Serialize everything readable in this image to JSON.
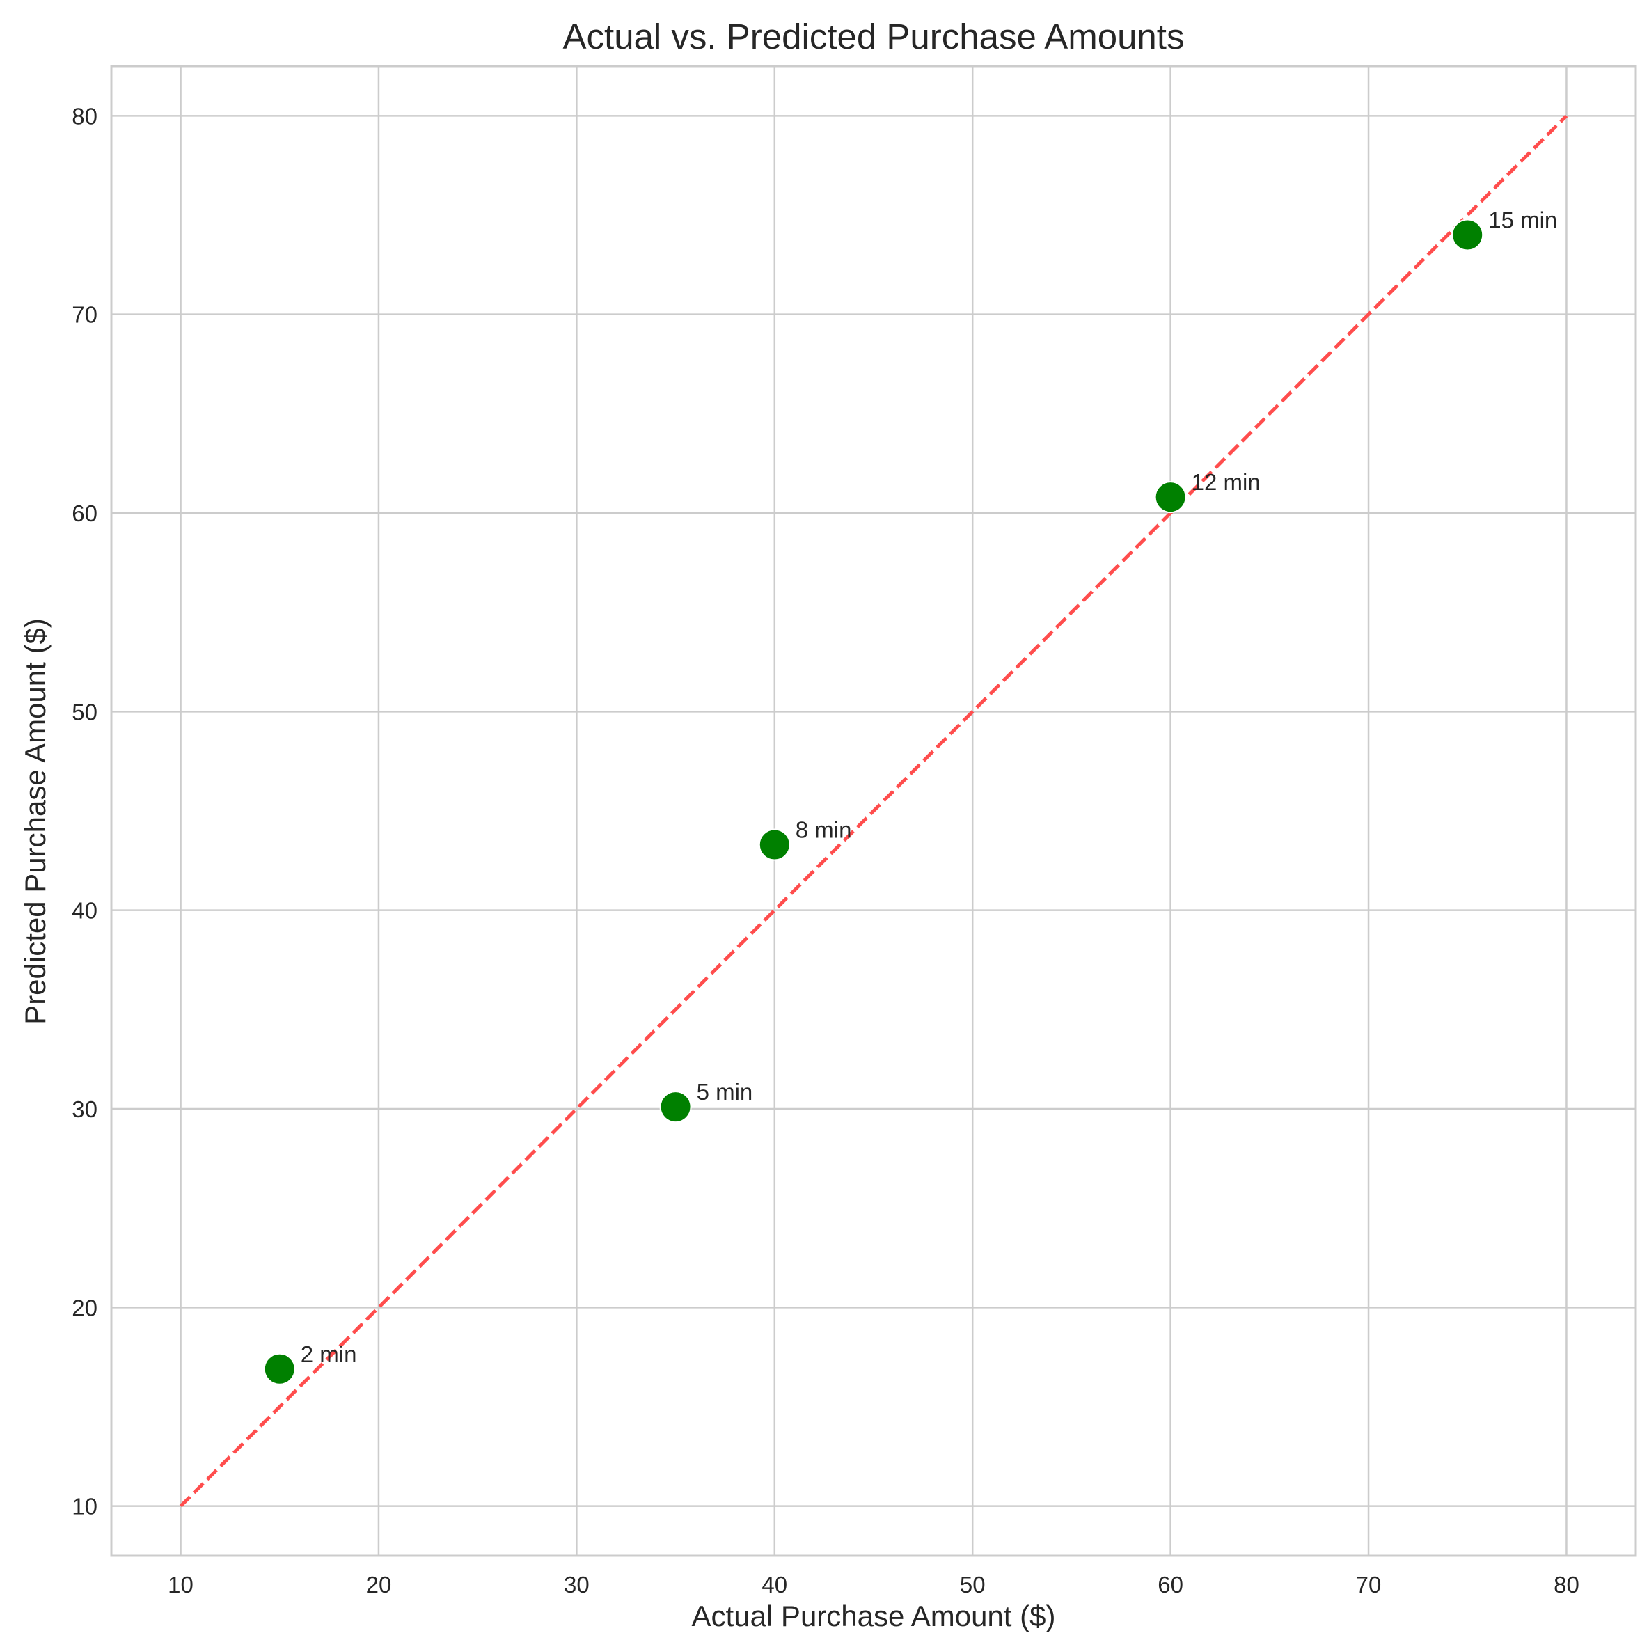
{
  "chart_data": {
    "type": "scatter",
    "title": "Actual vs. Predicted Purchase Amounts",
    "xlabel": "Actual Purchase Amount ($)",
    "ylabel": "Predicted Purchase Amount ($)",
    "xlim": [
      6.5,
      83.5
    ],
    "ylim": [
      7.5,
      82.5
    ],
    "xticks": [
      10,
      20,
      30,
      40,
      50,
      60,
      70,
      80
    ],
    "yticks": [
      10,
      20,
      30,
      40,
      50,
      60,
      70,
      80
    ],
    "grid": true,
    "points": [
      {
        "x": 15,
        "y": 16.9,
        "label": "2 min"
      },
      {
        "x": 35,
        "y": 30.1,
        "label": "5 min"
      },
      {
        "x": 40,
        "y": 43.3,
        "label": "8 min"
      },
      {
        "x": 60,
        "y": 60.8,
        "label": "12 min"
      },
      {
        "x": 75,
        "y": 74.0,
        "label": "15 min"
      }
    ],
    "point_color": "#008000",
    "reference_line": {
      "x": [
        10,
        80
      ],
      "y": [
        10,
        80
      ],
      "color": "#ff4d4d",
      "style": "dashed"
    }
  }
}
